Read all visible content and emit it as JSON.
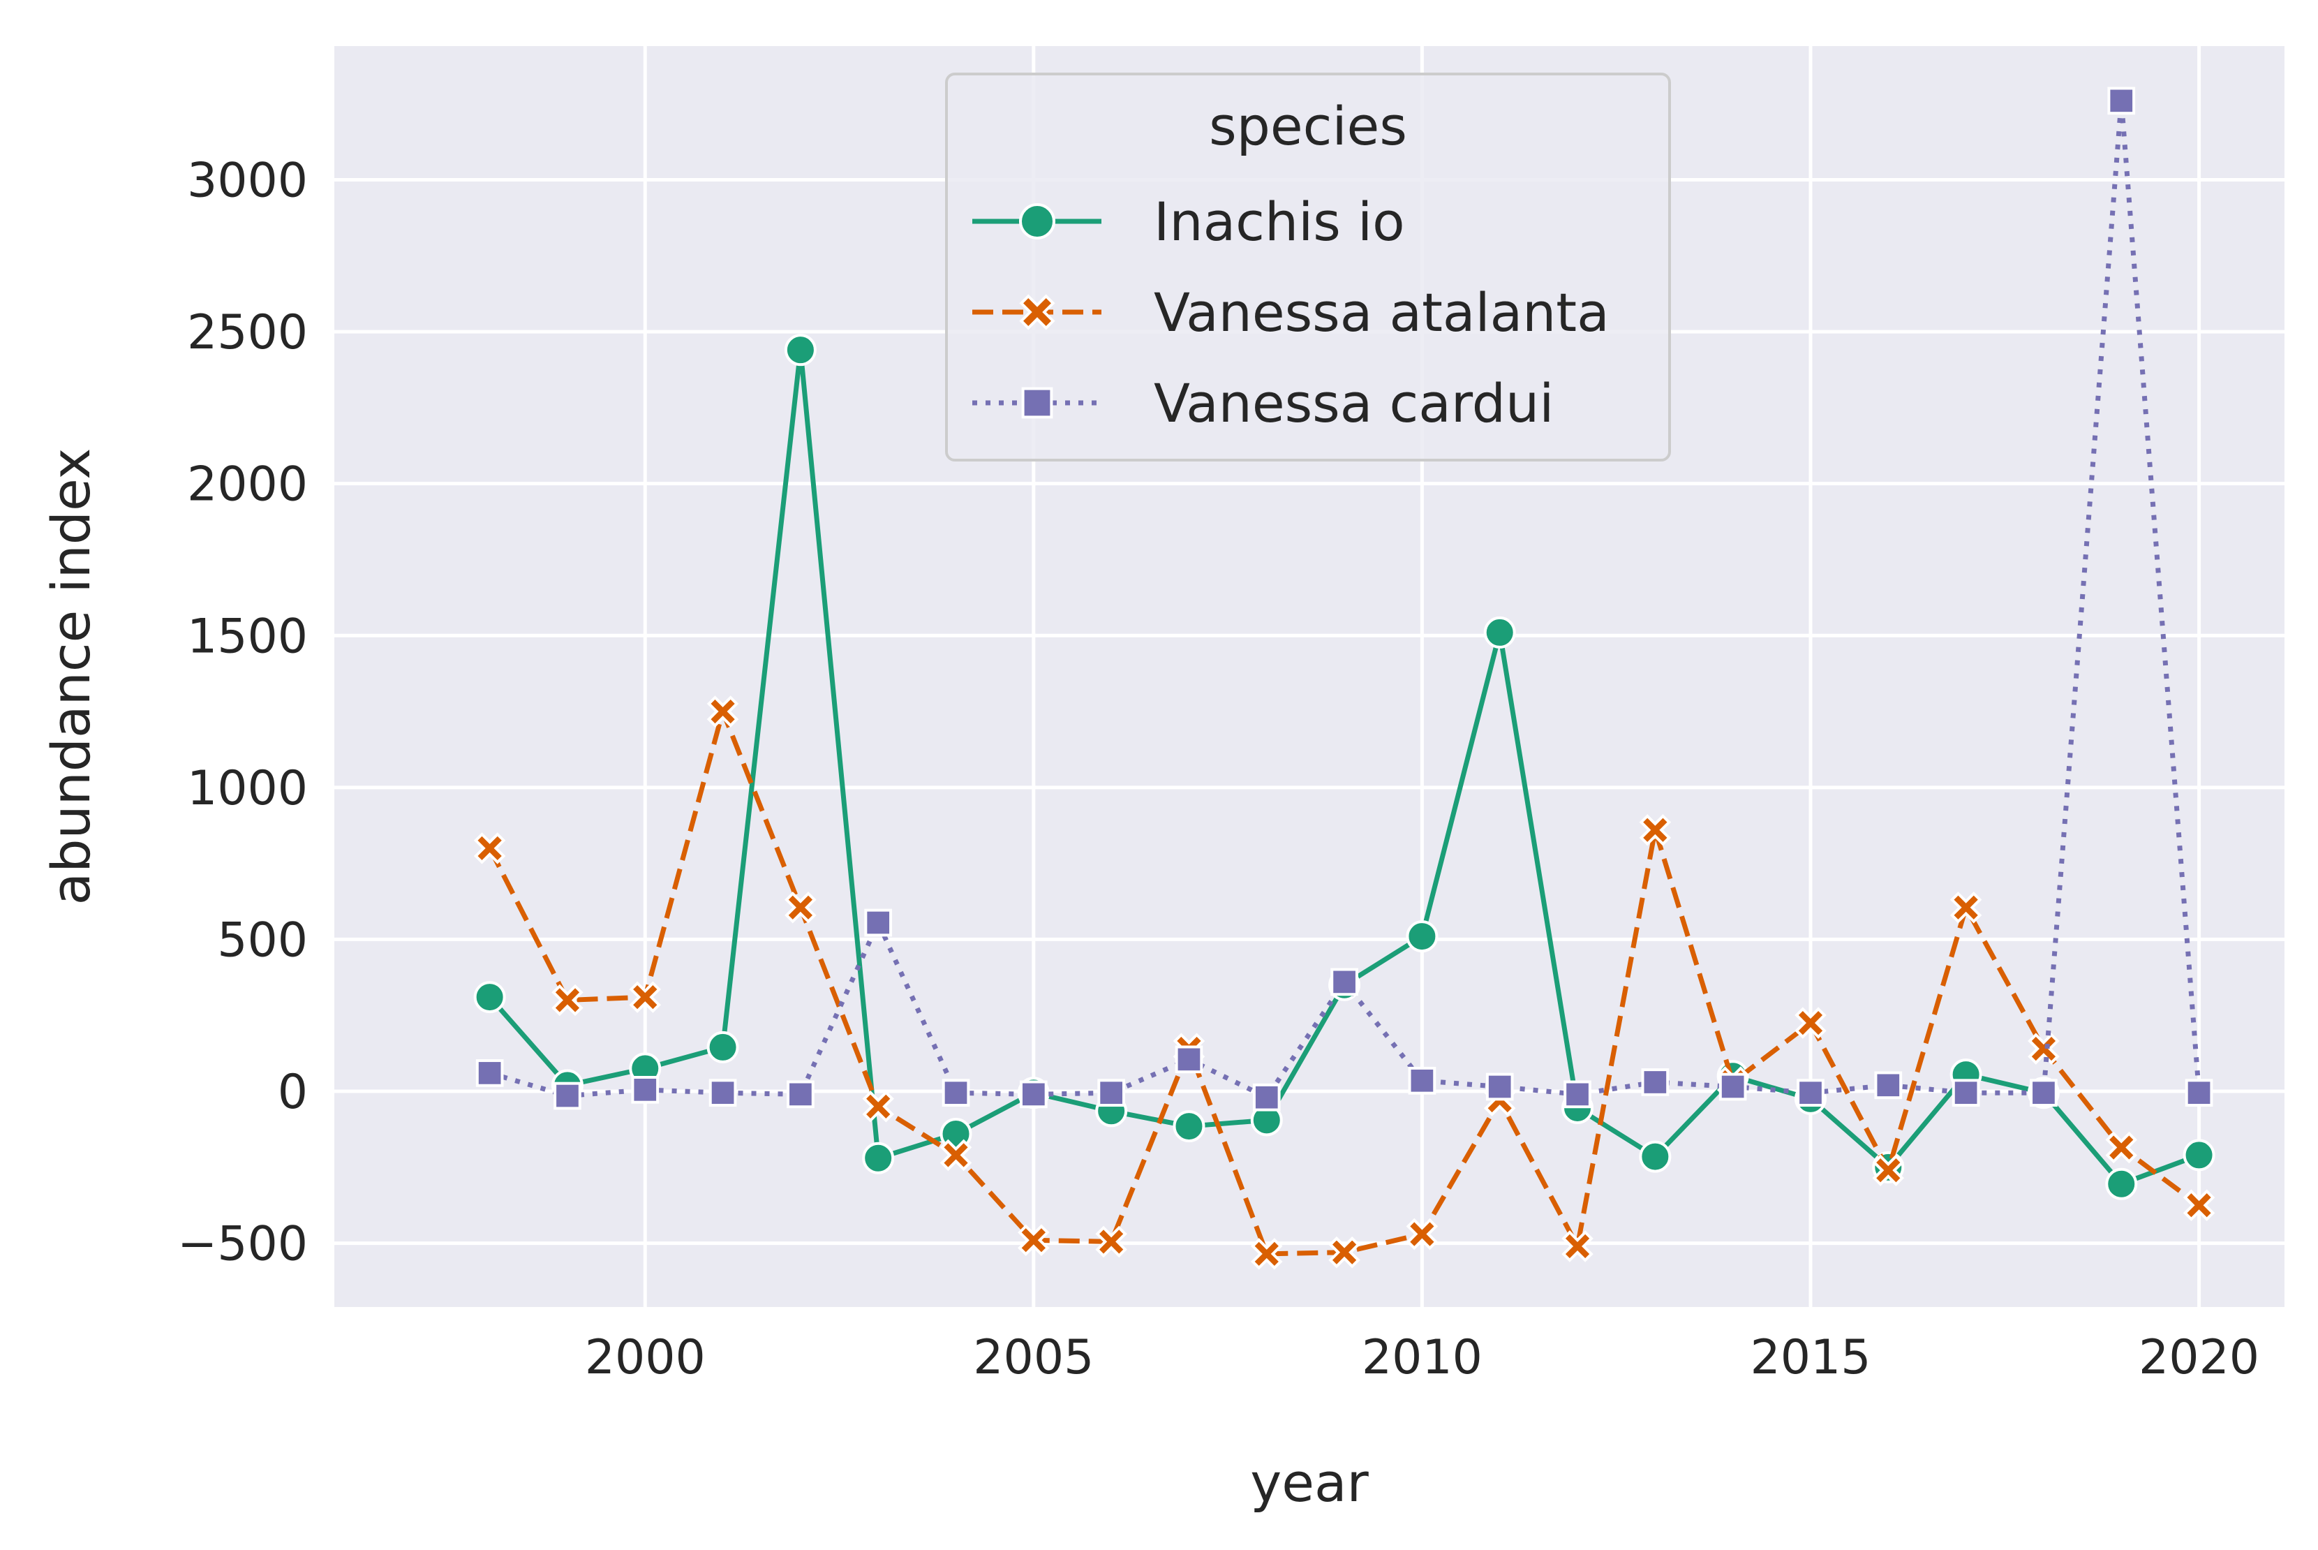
{
  "chart_data": {
    "type": "line",
    "xlabel": "year",
    "ylabel": "abundance index",
    "xlim": [
      1996,
      2021.1
    ],
    "ylim": [
      -710,
      3440
    ],
    "x_ticks": [
      "2000",
      "2005",
      "2010",
      "2015",
      "2020"
    ],
    "y_ticks": [
      "−500",
      "0",
      "500",
      "1000",
      "1500",
      "2000",
      "2500",
      "3000"
    ],
    "grid": true,
    "legend": {
      "title": "species",
      "placement": "top-center"
    },
    "x": [
      1998,
      1999,
      2000,
      2001,
      2002,
      2003,
      2004,
      2005,
      2006,
      2007,
      2008,
      2009,
      2010,
      2011,
      2012,
      2013,
      2014,
      2015,
      2016,
      2017,
      2018,
      2019,
      2020
    ],
    "series": [
      {
        "name": "Inachis io",
        "color": "#1b9e77",
        "dash": "solid",
        "marker": "circle",
        "values": [
          310,
          20,
          75,
          145,
          2440,
          -220,
          -140,
          -5,
          -65,
          -115,
          -95,
          350,
          510,
          1510,
          -55,
          -215,
          50,
          -25,
          -250,
          55,
          -5,
          -305,
          -210
        ]
      },
      {
        "name": "Vanessa atalanta",
        "color": "#d95f02",
        "dash": "dashed",
        "marker": "x",
        "values": [
          800,
          300,
          310,
          1250,
          605,
          -50,
          -210,
          -490,
          -495,
          140,
          -535,
          -530,
          -470,
          -30,
          -510,
          860,
          30,
          225,
          -260,
          605,
          140,
          -185,
          -375
        ]
      },
      {
        "name": "Vanessa cardui",
        "color": "#7570b3",
        "dash": "dotted",
        "marker": "square",
        "values": [
          60,
          -15,
          5,
          -5,
          -10,
          555,
          -5,
          -10,
          -5,
          105,
          -20,
          360,
          35,
          15,
          -10,
          30,
          15,
          -5,
          20,
          -5,
          -5,
          3260,
          -5
        ]
      }
    ]
  }
}
